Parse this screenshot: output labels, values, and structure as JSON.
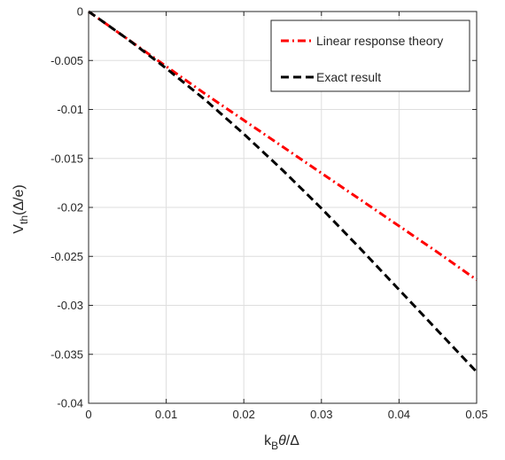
{
  "chart_data": {
    "type": "line",
    "title": "",
    "xlabel": "k_Bθ/Δ",
    "ylabel": "V_th(Δ/e)",
    "xlim": [
      0,
      0.05
    ],
    "ylim": [
      -0.04,
      0
    ],
    "x_ticks": [
      0,
      0.01,
      0.02,
      0.03,
      0.04,
      0.05
    ],
    "x_tick_labels": [
      "0",
      "0.01",
      "0.02",
      "0.03",
      "0.04",
      "0.05"
    ],
    "y_ticks": [
      0,
      -0.005,
      -0.01,
      -0.015,
      -0.02,
      -0.025,
      -0.03,
      -0.035,
      -0.04
    ],
    "y_tick_labels": [
      "0",
      "-0.005",
      "-0.01",
      "-0.015",
      "-0.02",
      "-0.025",
      "-0.03",
      "-0.035",
      "-0.04"
    ],
    "grid": true,
    "legend_position": "top-right",
    "series": [
      {
        "name": "Linear response theory",
        "color": "#ff0000",
        "style": "dash-dot",
        "x": [
          0,
          0.005,
          0.01,
          0.015,
          0.02,
          0.025,
          0.03,
          0.035,
          0.04,
          0.045,
          0.05
        ],
        "y": [
          0,
          -0.0028,
          -0.0056,
          -0.0084,
          -0.0111,
          -0.0138,
          -0.0165,
          -0.0192,
          -0.0219,
          -0.0246,
          -0.0274
        ]
      },
      {
        "name": "Exact result",
        "color": "#000000",
        "style": "dashed",
        "x": [
          0,
          0.005,
          0.01,
          0.015,
          0.02,
          0.025,
          0.03,
          0.035,
          0.04,
          0.045,
          0.05
        ],
        "y": [
          0,
          -0.0028,
          -0.0058,
          -0.009,
          -0.0125,
          -0.0162,
          -0.0201,
          -0.0242,
          -0.0284,
          -0.0326,
          -0.0368
        ]
      }
    ]
  }
}
